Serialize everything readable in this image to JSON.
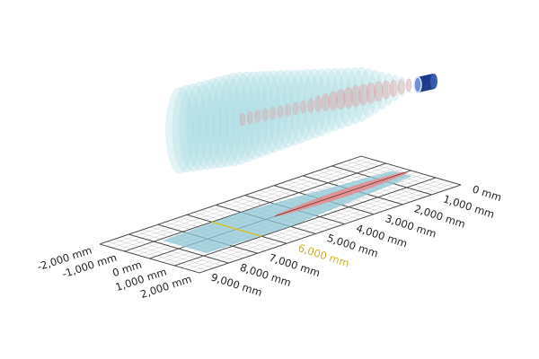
{
  "distance_axis": {
    "unit": "mm",
    "labels": [
      "0 mm",
      "1,000 mm",
      "2,000 mm",
      "3,000 mm",
      "4,000 mm",
      "5,000 mm",
      "6,000 mm",
      "7,000 mm",
      "8,000 mm",
      "9,000 mm"
    ],
    "values": [
      0,
      1000,
      2000,
      3000,
      4000,
      5000,
      6000,
      7000,
      8000,
      9000
    ],
    "highlighted_label": "6,000 mm",
    "highlighted_value": 6000
  },
  "lateral_axis": {
    "unit": "mm",
    "labels": [
      "-2,000 mm",
      "-1,000 mm",
      "0 mm",
      "1,000 mm",
      "2,000 mm"
    ],
    "values": [
      -2000,
      -1000,
      0,
      1000,
      2000
    ]
  },
  "colors": {
    "beam": "#9fd6e0",
    "beam_core": "#e88a8a",
    "sensor": "#1f3c8c",
    "grid": "#444444",
    "highlight": "#d8c020",
    "footprint": "#8ec6d6"
  }
}
